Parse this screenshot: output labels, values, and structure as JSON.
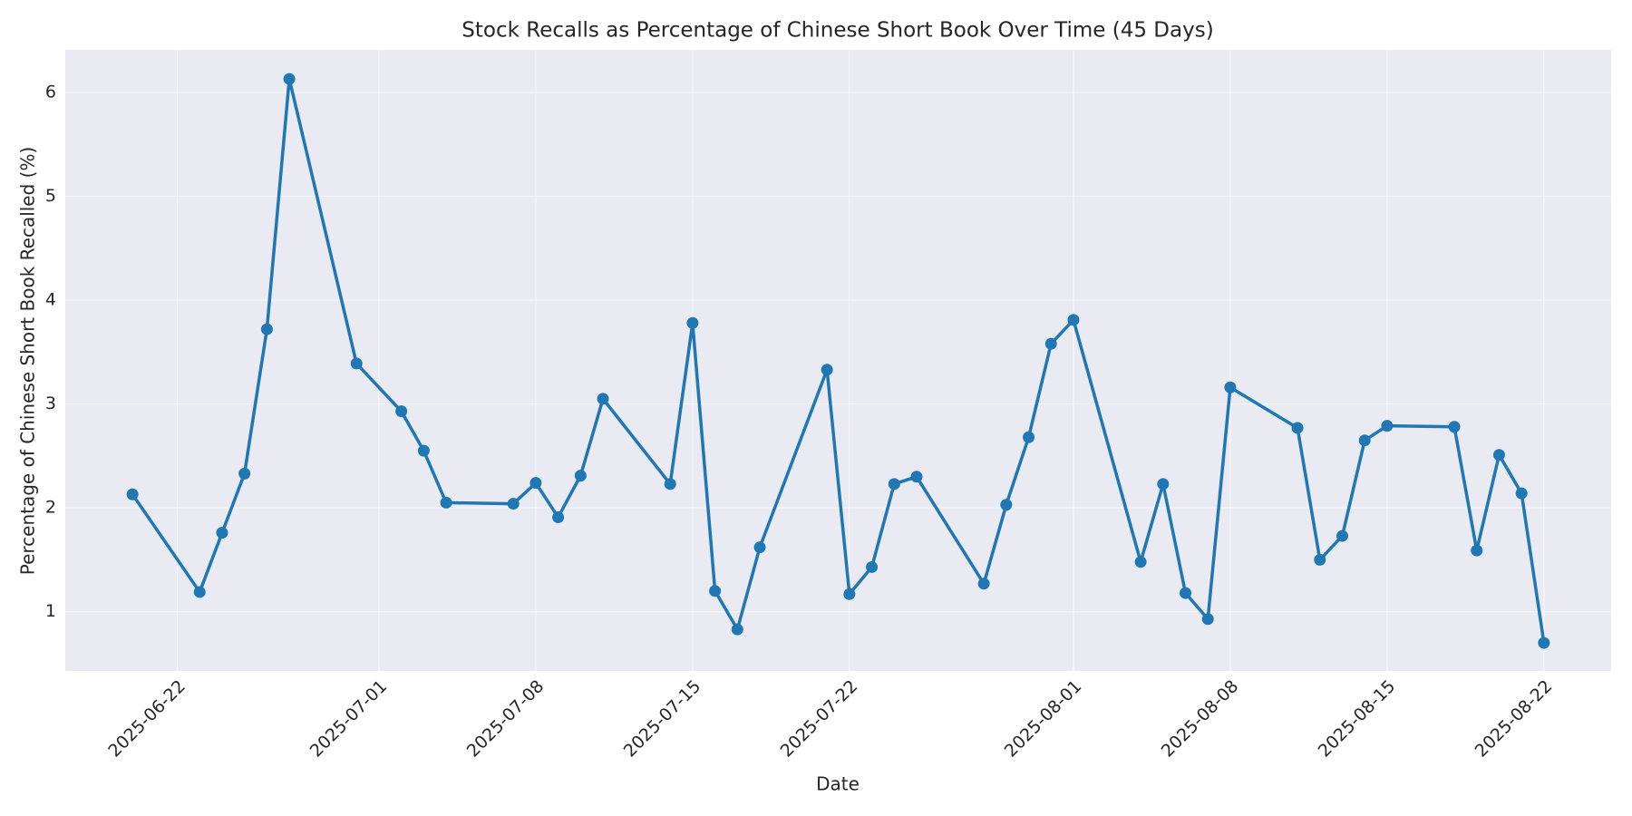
{
  "chart_data": {
    "type": "line",
    "title": "Stock Recalls as Percentage of Chinese Short Book Over Time (45 Days)",
    "xlabel": "Date",
    "ylabel": "Percentage of Chinese Short Book Recalled (%)",
    "x": [
      "2025-06-20",
      "2025-06-23",
      "2025-06-24",
      "2025-06-25",
      "2025-06-26",
      "2025-06-27",
      "2025-06-30",
      "2025-07-02",
      "2025-07-03",
      "2025-07-04",
      "2025-07-07",
      "2025-07-08",
      "2025-07-09",
      "2025-07-10",
      "2025-07-11",
      "2025-07-14",
      "2025-07-15",
      "2025-07-16",
      "2025-07-17",
      "2025-07-18",
      "2025-07-21",
      "2025-07-22",
      "2025-07-23",
      "2025-07-24",
      "2025-07-25",
      "2025-07-28",
      "2025-07-29",
      "2025-07-30",
      "2025-07-31",
      "2025-08-01",
      "2025-08-04",
      "2025-08-05",
      "2025-08-06",
      "2025-08-07",
      "2025-08-08",
      "2025-08-11",
      "2025-08-12",
      "2025-08-13",
      "2025-08-14",
      "2025-08-15",
      "2025-08-18",
      "2025-08-19",
      "2025-08-20",
      "2025-08-21",
      "2025-08-22"
    ],
    "values": [
      2.13,
      1.19,
      1.76,
      2.33,
      3.72,
      6.13,
      3.39,
      2.93,
      2.55,
      2.05,
      2.04,
      2.24,
      1.91,
      2.31,
      3.05,
      2.23,
      3.78,
      1.2,
      0.83,
      1.62,
      3.33,
      1.17,
      1.43,
      2.23,
      2.3,
      1.27,
      2.03,
      2.68,
      3.58,
      3.81,
      1.48,
      2.23,
      1.18,
      0.93,
      3.16,
      2.77,
      1.5,
      1.73,
      2.65,
      2.79,
      2.78,
      1.59,
      2.51,
      2.14,
      0.7
    ],
    "color": "#1f77b4",
    "xlim": [
      "2025-06-17",
      "2025-08-25"
    ],
    "xticks": [
      "2025-06-22",
      "2025-07-01",
      "2025-07-08",
      "2025-07-15",
      "2025-07-22",
      "2025-08-01",
      "2025-08-08",
      "2025-08-15",
      "2025-08-22"
    ],
    "ylim": [
      0.43,
      6.41
    ],
    "yticks": [
      1,
      2,
      3,
      4,
      5,
      6
    ],
    "grid": true
  }
}
